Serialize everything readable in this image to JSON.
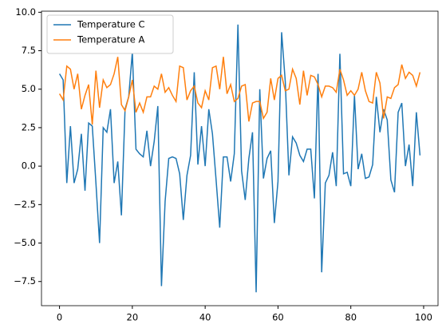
{
  "chart_data": {
    "type": "line",
    "x": [
      0,
      1,
      2,
      3,
      4,
      5,
      6,
      7,
      8,
      9,
      10,
      11,
      12,
      13,
      14,
      15,
      16,
      17,
      18,
      19,
      20,
      21,
      22,
      23,
      24,
      25,
      26,
      27,
      28,
      29,
      30,
      31,
      32,
      33,
      34,
      35,
      36,
      37,
      38,
      39,
      40,
      41,
      42,
      43,
      44,
      45,
      46,
      47,
      48,
      49,
      50,
      51,
      52,
      53,
      54,
      55,
      56,
      57,
      58,
      59,
      60,
      61,
      62,
      63,
      64,
      65,
      66,
      67,
      68,
      69,
      70,
      71,
      72,
      73,
      74,
      75,
      76,
      77,
      78,
      79,
      80,
      81,
      82,
      83,
      84,
      85,
      86,
      87,
      88,
      89,
      90,
      91,
      92,
      93,
      94,
      95,
      96,
      97,
      98,
      99
    ],
    "series": [
      {
        "name": "Temperature C",
        "color": "#1f77b4",
        "values": [
          6.0,
          5.6,
          -1.1,
          2.6,
          -1.1,
          -0.2,
          2.1,
          -1.6,
          2.8,
          2.6,
          -1.1,
          -5.0,
          2.5,
          2.2,
          3.7,
          -1.1,
          0.3,
          -3.2,
          3.7,
          4.5,
          7.4,
          1.1,
          0.8,
          0.6,
          2.3,
          0.0,
          1.6,
          3.9,
          -7.8,
          -2.3,
          0.5,
          0.6,
          0.5,
          -0.5,
          -3.5,
          -0.6,
          0.7,
          6.1,
          0.1,
          2.6,
          0.0,
          3.7,
          2.1,
          -0.9,
          -4.0,
          0.6,
          0.6,
          -1.0,
          0.8,
          9.2,
          -0.3,
          -2.2,
          0.5,
          2.2,
          -8.2,
          5.0,
          -0.8,
          0.5,
          1.0,
          -3.7,
          -1.0,
          8.7,
          5.5,
          -0.6,
          1.9,
          1.5,
          0.7,
          0.3,
          1.1,
          1.1,
          -2.1,
          6.0,
          -6.9,
          -1.1,
          -0.6,
          0.9,
          -1.3,
          7.3,
          -0.5,
          -0.4,
          -1.3,
          4.6,
          -0.2,
          0.8,
          -0.8,
          -0.7,
          0.1,
          4.5,
          2.2,
          3.7,
          3.0,
          -0.9,
          -1.7,
          3.5,
          4.1,
          0.0,
          1.4,
          -1.3,
          3.5,
          0.7
        ]
      },
      {
        "name": "Temperature A",
        "color": "#ff7f0e",
        "values": [
          4.7,
          4.3,
          6.5,
          6.3,
          5.0,
          6.0,
          3.7,
          4.6,
          5.3,
          2.7,
          6.2,
          3.8,
          5.6,
          5.1,
          5.3,
          6.0,
          7.1,
          4.0,
          3.6,
          4.5,
          5.6,
          3.5,
          4.1,
          3.5,
          4.5,
          4.5,
          5.2,
          5.0,
          6.0,
          4.8,
          5.1,
          4.6,
          4.2,
          6.5,
          6.4,
          4.3,
          4.9,
          5.2,
          4.1,
          3.8,
          4.9,
          4.3,
          6.4,
          6.5,
          5.0,
          7.1,
          4.7,
          5.3,
          4.2,
          4.4,
          5.2,
          5.3,
          2.9,
          4.1,
          4.2,
          4.2,
          3.1,
          3.5,
          5.7,
          4.3,
          5.7,
          5.9,
          4.9,
          5.0,
          6.3,
          5.7,
          4.0,
          6.2,
          4.6,
          5.9,
          5.8,
          5.3,
          4.5,
          5.2,
          5.2,
          5.1,
          4.8,
          6.3,
          5.6,
          4.6,
          4.9,
          4.6,
          5.0,
          6.1,
          4.9,
          4.2,
          4.1,
          6.1,
          5.4,
          3.1,
          4.5,
          4.4,
          5.1,
          5.3,
          6.6,
          5.7,
          6.1,
          5.9,
          5.2,
          6.1
        ]
      }
    ],
    "xlim": [
      -4.95,
      103.95
    ],
    "xticks": [
      0,
      20,
      40,
      60,
      80,
      100
    ],
    "ylim": [
      -9.07,
      10.07
    ],
    "yticks": [
      {
        "value": -7.5,
        "label": "−7.5"
      },
      {
        "value": -5,
        "label": "−5.0"
      },
      {
        "value": -2.5,
        "label": "−2.5"
      },
      {
        "value": 0,
        "label": "0.0"
      },
      {
        "value": 2.5,
        "label": "2.5"
      },
      {
        "value": 5,
        "label": "5.0"
      },
      {
        "value": 7.5,
        "label": "7.5"
      },
      {
        "value": 10,
        "label": "10.0"
      }
    ],
    "legend": "upper left",
    "grid": false
  }
}
